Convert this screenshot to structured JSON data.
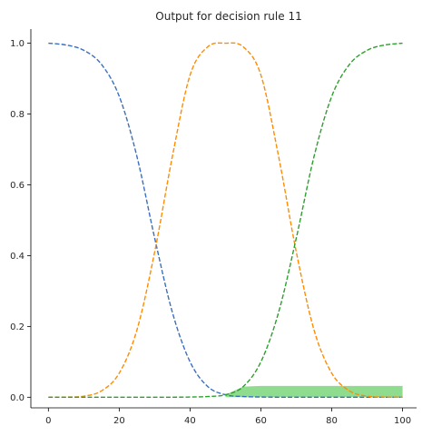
{
  "chart_data": {
    "type": "line",
    "title": "Output for decision rule 11",
    "xlabel": "",
    "ylabel": "",
    "xlim": [
      -4.95,
      103.95
    ],
    "ylim": [
      -0.03,
      1.04
    ],
    "xticks": [
      0,
      20,
      40,
      60,
      80,
      100
    ],
    "yticks": [
      0.0,
      0.2,
      0.4,
      0.6,
      0.8,
      1.0
    ],
    "xtick_labels": [
      "0",
      "20",
      "40",
      "60",
      "80",
      "100"
    ],
    "ytick_labels": [
      "0.0",
      "0.2",
      "0.4",
      "0.6",
      "0.8",
      "1.0"
    ],
    "grid": false,
    "legend": "none",
    "series": [
      {
        "color": "#3a6fbf",
        "style": "dashed",
        "x": [
          0,
          5,
          10,
          15,
          20,
          25,
          30,
          35,
          40,
          45,
          50,
          55,
          60,
          65,
          70,
          75,
          80,
          85,
          90,
          95,
          100
        ],
        "y": [
          1.0,
          0.995,
          0.98,
          0.94,
          0.85,
          0.68,
          0.45,
          0.24,
          0.1,
          0.03,
          0.007,
          0.002,
          0.0005,
          0.0001,
          0.0,
          0.0,
          0.0,
          0.0,
          0.0,
          0.0,
          0.0
        ]
      },
      {
        "color": "#ff8c00",
        "style": "dashed",
        "x": [
          0,
          5,
          10,
          15,
          20,
          25,
          30,
          35,
          40,
          45,
          50,
          55,
          60,
          65,
          70,
          75,
          80,
          85,
          90,
          95,
          100
        ],
        "y": [
          0.0,
          0.0004,
          0.003,
          0.018,
          0.068,
          0.19,
          0.41,
          0.68,
          0.91,
          0.99,
          1.0,
          0.99,
          0.91,
          0.68,
          0.41,
          0.19,
          0.068,
          0.018,
          0.003,
          0.0004,
          0.0
        ]
      },
      {
        "color": "#2ca02c",
        "style": "dashed",
        "x": [
          0,
          5,
          10,
          15,
          20,
          25,
          30,
          35,
          40,
          45,
          50,
          55,
          60,
          65,
          70,
          75,
          80,
          85,
          90,
          95,
          100
        ],
        "y": [
          0.0,
          0.0,
          0.0,
          0.0,
          0.0,
          0.0,
          0.0,
          0.0001,
          0.0005,
          0.002,
          0.007,
          0.03,
          0.1,
          0.24,
          0.45,
          0.68,
          0.85,
          0.94,
          0.98,
          0.995,
          1.0
        ]
      }
    ],
    "fill": {
      "color": "#8fdc8f",
      "x_start": 50,
      "x_end": 100,
      "cap": 0.032,
      "curve": "green"
    }
  }
}
